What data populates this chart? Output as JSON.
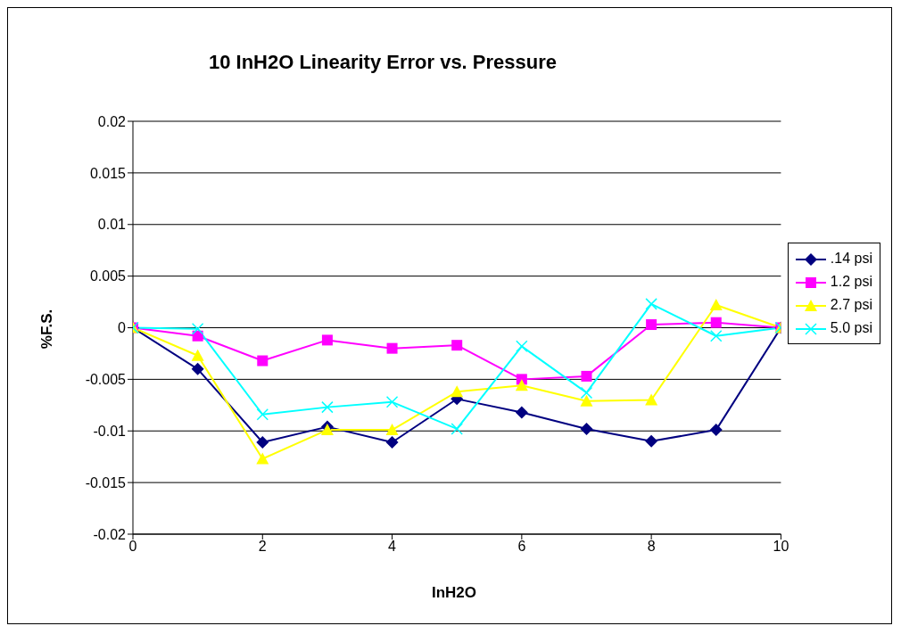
{
  "chart_data": {
    "type": "line",
    "title": "10 InH2O Linearity Error vs. Pressure",
    "xlabel": "InH2O",
    "ylabel": "%F.S.",
    "x": [
      0,
      1,
      2,
      3,
      4,
      5,
      6,
      7,
      8,
      9,
      10
    ],
    "series": [
      {
        "name": ".14 psi",
        "color": "#000080",
        "marker": "diamond",
        "values": [
          0,
          -0.004,
          -0.0111,
          -0.0096,
          -0.0111,
          -0.0069,
          -0.0082,
          -0.0098,
          -0.011,
          -0.0099,
          0
        ]
      },
      {
        "name": "1.2 psi",
        "color": "#ff00ff",
        "marker": "square",
        "values": [
          0,
          -0.0008,
          -0.0032,
          -0.0012,
          -0.002,
          -0.0017,
          -0.005,
          -0.0047,
          0.0003,
          0.0005,
          0
        ]
      },
      {
        "name": "2.7 psi",
        "color": "#ffff00",
        "marker": "triangle",
        "values": [
          0,
          -0.0027,
          -0.0127,
          -0.0099,
          -0.0099,
          -0.0062,
          -0.0056,
          -0.0071,
          -0.007,
          0.0022,
          0
        ]
      },
      {
        "name": "5.0 psi",
        "color": "#00ffff",
        "marker": "cross",
        "values": [
          0,
          -0.0001,
          -0.0084,
          -0.0077,
          -0.0072,
          -0.0098,
          -0.0018,
          -0.0063,
          0.0023,
          -0.0008,
          0
        ]
      }
    ],
    "xlim": [
      0,
      10
    ],
    "xticks": [
      0,
      2,
      4,
      6,
      8,
      10
    ],
    "ylim": [
      -0.02,
      0.02
    ],
    "yticks": [
      -0.02,
      -0.015,
      -0.01,
      -0.005,
      0,
      0.005,
      0.01,
      0.015,
      0.02
    ],
    "grid": "y",
    "legend": "right"
  }
}
